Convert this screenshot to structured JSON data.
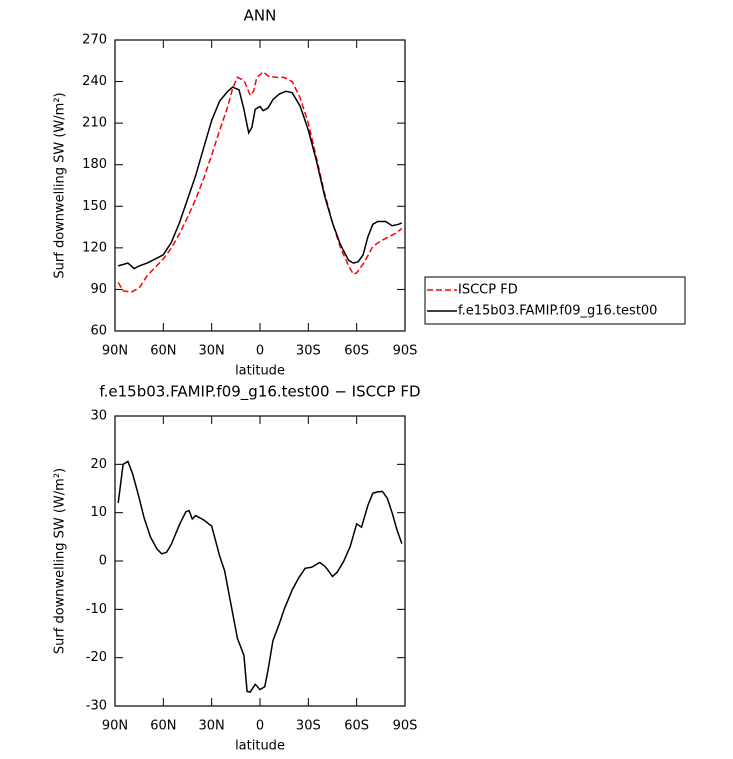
{
  "chart_data": [
    {
      "type": "line",
      "title": "ANN",
      "xlabel": "latitude",
      "ylabel": "Surf downwelling SW (W/m²)",
      "xlim": [
        90,
        -90
      ],
      "ylim": [
        60,
        270
      ],
      "xticks": [
        {
          "value": 90,
          "label": "90N"
        },
        {
          "value": 60,
          "label": "60N"
        },
        {
          "value": 30,
          "label": "30N"
        },
        0,
        {
          "value": -30,
          "label": "30S"
        },
        {
          "value": -60,
          "label": "60S"
        },
        {
          "value": -90,
          "label": "90S"
        }
      ],
      "yticks": [
        60,
        90,
        120,
        150,
        180,
        210,
        240,
        270
      ],
      "legend": "outside-right",
      "series": [
        {
          "name": "ISCCP FD",
          "color": "#ff0000",
          "dash": true,
          "x": [
            88,
            85,
            80,
            75,
            70,
            65,
            60,
            55,
            50,
            45,
            40,
            35,
            30,
            25,
            20,
            17,
            14,
            10,
            6,
            4,
            2,
            -2,
            -5,
            -10,
            -15,
            -20,
            -25,
            -30,
            -35,
            -40,
            -45,
            -50,
            -55,
            -58,
            -60,
            -65,
            -70,
            -75,
            -80,
            -85,
            -88
          ],
          "values": [
            95,
            89,
            88,
            91,
            100,
            106,
            112,
            120,
            130,
            142,
            155,
            170,
            187,
            205,
            222,
            235,
            243,
            241,
            230,
            233,
            243,
            247,
            244,
            243,
            243,
            240,
            228,
            210,
            185,
            160,
            138,
            120,
            107,
            101,
            102,
            110,
            121,
            125,
            128,
            131,
            134
          ]
        },
        {
          "name": "f.e15b03.FAMIP.f09_g16.test00",
          "color": "#000000",
          "dash": false,
          "x": [
            88,
            85,
            82,
            78,
            75,
            70,
            65,
            60,
            55,
            50,
            45,
            40,
            35,
            30,
            25,
            20,
            17,
            13,
            10,
            7,
            5,
            3,
            0,
            -2,
            -5,
            -8,
            -12,
            -16,
            -20,
            -25,
            -30,
            -35,
            -40,
            -45,
            -50,
            -55,
            -58,
            -61,
            -64,
            -67,
            -70,
            -73,
            -78,
            -82,
            -86,
            -88
          ],
          "values": [
            107,
            108,
            109,
            105,
            107,
            109,
            112,
            115,
            124,
            138,
            155,
            172,
            192,
            212,
            226,
            233,
            236,
            234,
            220,
            203,
            207,
            220,
            222,
            219,
            221,
            227,
            231,
            233,
            232,
            222,
            205,
            183,
            158,
            138,
            122,
            111,
            109,
            110,
            115,
            128,
            137,
            139,
            139,
            136,
            137,
            138
          ]
        }
      ]
    },
    {
      "type": "line",
      "title": "f.e15b03.FAMIP.f09_g16.test00 − ISCCP FD",
      "xlabel": "latitude",
      "ylabel": "Surf downwelling SW (W/m²)",
      "xlim": [
        90,
        -90
      ],
      "ylim": [
        -30,
        30
      ],
      "xticks": [
        {
          "value": 90,
          "label": "90N"
        },
        {
          "value": 60,
          "label": "60N"
        },
        {
          "value": 30,
          "label": "30N"
        },
        0,
        {
          "value": -30,
          "label": "30S"
        },
        {
          "value": -60,
          "label": "60S"
        },
        {
          "value": -90,
          "label": "90S"
        }
      ],
      "yticks": [
        -30,
        -20,
        -10,
        0,
        10,
        20,
        30
      ],
      "color": "#000000",
      "x": [
        88,
        85,
        82,
        79,
        75,
        72,
        68,
        64,
        61,
        58,
        55,
        50,
        46,
        44,
        42,
        40,
        35,
        30,
        25,
        22,
        18,
        14,
        10,
        8,
        6,
        3,
        0,
        -3,
        -5,
        -8,
        -12,
        -15,
        -20,
        -24,
        -28,
        -32,
        -37,
        -40,
        -42,
        -45,
        -48,
        -52,
        -56,
        -60,
        -63,
        -67,
        -70,
        -73,
        -76,
        -79,
        -82,
        -85,
        -88
      ],
      "values": [
        12,
        20,
        20.6,
        18,
        13,
        9,
        5,
        2.5,
        1.5,
        1.8,
        3.5,
        7.5,
        10.2,
        10.4,
        8.7,
        9.4,
        8.5,
        7.2,
        1,
        -2,
        -9,
        -16,
        -19.5,
        -27,
        -27.1,
        -25.5,
        -26.6,
        -26,
        -22.5,
        -16.5,
        -13,
        -10,
        -6,
        -3.5,
        -1.5,
        -1.3,
        -0.3,
        -1,
        -1.8,
        -3.2,
        -2.3,
        0,
        3,
        7.7,
        7,
        11.5,
        14,
        14.3,
        14.4,
        13,
        10,
        6.5,
        3.6
      ]
    }
  ]
}
